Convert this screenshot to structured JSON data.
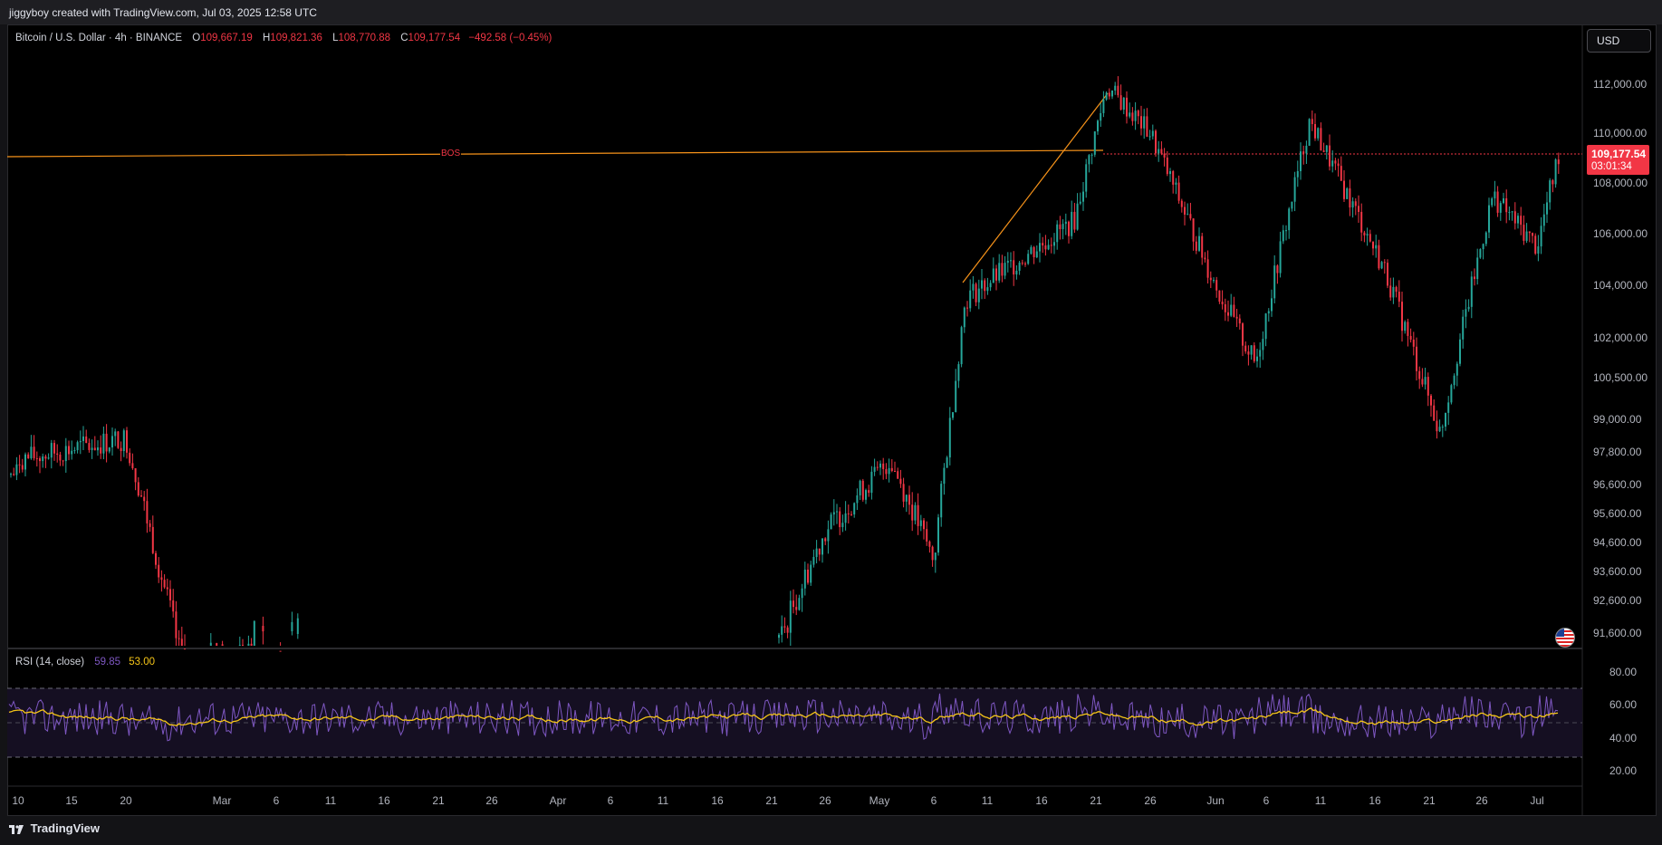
{
  "credit": "jiggyboy created with TradingView.com, Jul 03, 2025 12:58 UTC",
  "legend": {
    "title": "Bitcoin / U.S. Dollar · 4h · BINANCE",
    "o_key": "O",
    "o_val": "109,667.19",
    "h_key": "H",
    "h_val": "109,821.36",
    "l_key": "L",
    "l_val": "108,770.88",
    "c_key": "C",
    "c_val": "109,177.54",
    "change": "−492.58 (−0.45%)"
  },
  "currency_button": "USD",
  "price_axis": [
    "112,000.00",
    "110,000.00",
    "108,000.00",
    "106,000.00",
    "104,000.00",
    "102,000.00",
    "100,500.00",
    "99,000.00",
    "97,800.00",
    "96,600.00",
    "95,600.00",
    "94,600.00",
    "93,600.00",
    "92,600.00",
    "91,600.00"
  ],
  "last_price": {
    "price": "109,177.54",
    "countdown": "03:01:34"
  },
  "bos_label": "BOS",
  "rsi": {
    "title": "RSI (14, close)",
    "value": "59.85",
    "ma_value": "53.00",
    "axis": [
      "80.00",
      "60.00",
      "40.00",
      "20.00"
    ]
  },
  "time_axis": [
    "10",
    "15",
    "20",
    "Mar",
    "6",
    "11",
    "16",
    "21",
    "26",
    "Apr",
    "6",
    "11",
    "16",
    "21",
    "26",
    "May",
    "6",
    "11",
    "16",
    "21",
    "26",
    "Jun",
    "6",
    "11",
    "16",
    "21",
    "26",
    "Jul"
  ],
  "footer": "TradingView",
  "colors": {
    "up": "#26a69a",
    "down": "#f23645",
    "rsi": "#7e57c2",
    "rsi_ma": "#f5c518",
    "bos": "#f7931a"
  },
  "chart_data": {
    "type": "candlestick",
    "symbol": "Bitcoin / U.S. Dollar",
    "interval": "4h",
    "exchange": "BINANCE",
    "key_points": [
      {
        "date": "Feb 10",
        "price": 97500
      },
      {
        "date": "Feb 20",
        "price": 98300
      },
      {
        "date": "Feb 25",
        "price": 91000
      },
      {
        "date": "Apr 22",
        "price": 91500
      },
      {
        "date": "Apr 26",
        "price": 95000
      },
      {
        "date": "May 2",
        "price": 97500
      },
      {
        "date": "May 6",
        "price": 94000
      },
      {
        "date": "May 9",
        "price": 103500
      },
      {
        "date": "May 19",
        "price": 106500
      },
      {
        "date": "May 22",
        "price": 111900
      },
      {
        "date": "May 26",
        "price": 110000
      },
      {
        "date": "Jun 1",
        "price": 104000
      },
      {
        "date": "Jun 5",
        "price": 101000
      },
      {
        "date": "Jun 10",
        "price": 110500
      },
      {
        "date": "Jun 17",
        "price": 104500
      },
      {
        "date": "Jun 22",
        "price": 98500
      },
      {
        "date": "Jun 27",
        "price": 107500
      },
      {
        "date": "Jul 1",
        "price": 105500
      },
      {
        "date": "Jul 3",
        "price": 109177.54
      }
    ],
    "bos_level": 109200,
    "rsi_range": [
      20,
      80
    ],
    "rsi_bands": [
      30,
      50,
      70
    ]
  }
}
